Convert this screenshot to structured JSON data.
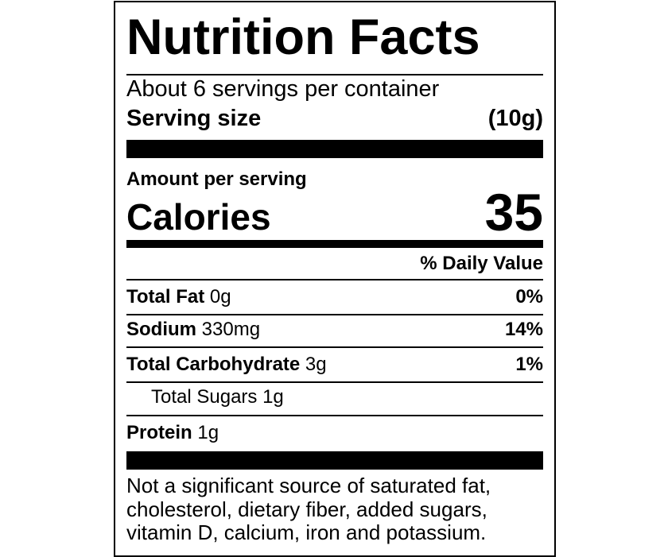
{
  "title": "Nutrition Facts",
  "servings_per_container": "About 6 servings per container",
  "serving_size": {
    "label": "Serving size",
    "value": "(10g)"
  },
  "amount_per_serving": "Amount per serving",
  "calories": {
    "label": "Calories",
    "value": "35"
  },
  "daily_value_header": "% Daily Value",
  "nutrients": [
    {
      "name": "Total Fat",
      "amount": "0g",
      "dv": "0%"
    },
    {
      "name": "Sodium",
      "amount": "330mg",
      "dv": "14%"
    },
    {
      "name": "Total Carbohydrate",
      "amount": "3g",
      "dv": "1%"
    },
    {
      "name": "Total Sugars",
      "amount": "1g",
      "dv": ""
    },
    {
      "name": "Protein",
      "amount": "1g",
      "dv": ""
    }
  ],
  "footnote": [
    "Not a significant source of saturated fat,",
    "cholesterol, dietary fiber, added sugars,",
    "vitamin D, calcium, iron and potassium."
  ]
}
